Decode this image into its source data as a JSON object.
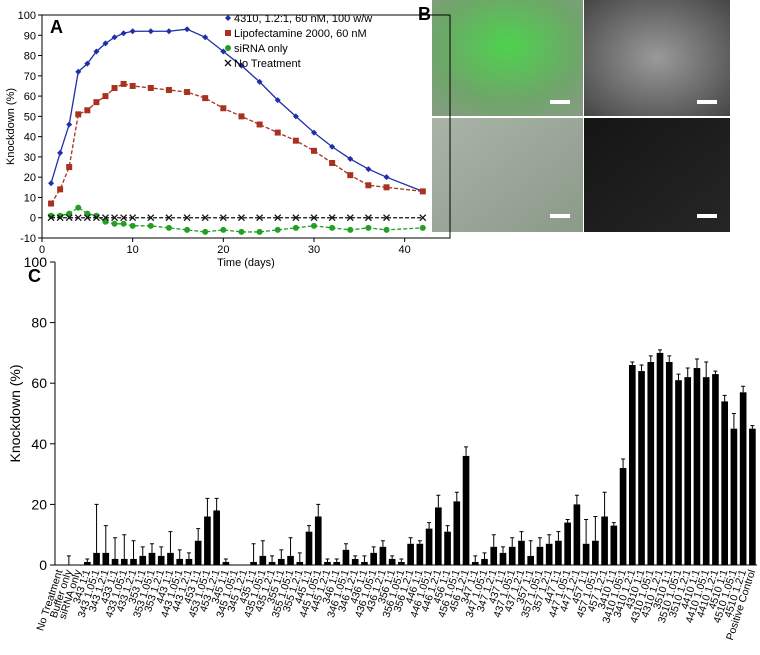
{
  "chart_data": [
    {
      "type": "line",
      "panel_label": "A",
      "x_label": "Time (days)",
      "y_label": "Knockdown (%)",
      "x": [
        1,
        2,
        3,
        4,
        5,
        6,
        7,
        8,
        9,
        10,
        12,
        14,
        16,
        18,
        20,
        22,
        24,
        26,
        28,
        30,
        32,
        34,
        36,
        38,
        42
      ],
      "xlim": [
        0,
        45
      ],
      "xticks": [
        0,
        10,
        20,
        30,
        40
      ],
      "ylim": [
        -10,
        100
      ],
      "yticks": [
        -10,
        0,
        10,
        20,
        30,
        40,
        50,
        60,
        70,
        80,
        90,
        100
      ],
      "series": [
        {
          "name": "4310, 1.2:1, 60 nM, 100 w/w",
          "color": "#1f2fa8",
          "marker": "diamond",
          "dashed": false,
          "values": [
            17,
            32,
            46,
            72,
            76,
            82,
            86,
            89,
            91,
            92,
            92,
            92,
            93,
            89,
            82,
            75,
            67,
            58,
            50,
            42,
            35,
            29,
            24,
            20,
            13
          ]
        },
        {
          "name": "Lipofectamine 2000, 60 nM",
          "color": "#a8321f",
          "marker": "square",
          "dashed": true,
          "values": [
            7,
            14,
            25,
            51,
            53,
            57,
            60,
            64,
            66,
            65,
            64,
            63,
            62,
            59,
            54,
            50,
            46,
            42,
            38,
            33,
            27,
            21,
            16,
            15,
            13
          ]
        },
        {
          "name": "siRNA only",
          "color": "#22a022",
          "marker": "circle",
          "dashed": true,
          "values": [
            1,
            1,
            2,
            5,
            2,
            1,
            -2,
            -3,
            -3,
            -4,
            -4,
            -5,
            -6,
            -7,
            -6,
            -7,
            -7,
            -6,
            -5,
            -4,
            -5,
            -6,
            -5,
            -6,
            -5
          ]
        },
        {
          "name": "No Treatment",
          "color": "#111111",
          "marker": "x",
          "dashed": true,
          "values": [
            0,
            0,
            0,
            0,
            0,
            0,
            0,
            0,
            0,
            0,
            0,
            0,
            0,
            0,
            0,
            0,
            0,
            0,
            0,
            0,
            0,
            0,
            0,
            0,
            0
          ]
        }
      ],
      "legend": "top-right"
    },
    {
      "type": "bar",
      "panel_label": "C",
      "y_label": "Knockdown (%)",
      "color": "#000000",
      "ylim": [
        0,
        100
      ],
      "yticks": [
        0,
        20,
        40,
        60,
        80,
        100
      ],
      "categories": [
        "No Treatment",
        "Buffer only",
        "siRNA only",
        "343 1:1",
        "343 1.05:1",
        "343 1.2:1",
        "433 1:1",
        "433 1.05:1",
        "433 1.2:1",
        "353 1:1",
        "353 1.05:1",
        "353 1.2:1",
        "443 1:1",
        "443 1.05:1",
        "443 1.2:1",
        "453 1:1",
        "453 1.05:1",
        "453 1.2:1",
        "345 1:1",
        "345 1.05:1",
        "345 1.2:1",
        "435 1:1",
        "435 1.05:1",
        "435 1.2:1",
        "355 1:1",
        "355 1.05:1",
        "355 1.2:1",
        "445 1:1",
        "445 1.05:1",
        "445 1.2:1",
        "346 1:1",
        "346 1.05:1",
        "346 1.2:1",
        "436 1:1",
        "436 1.05:1",
        "436 1.2:1",
        "356 1:1",
        "356 1.05:1",
        "356 1.2:1",
        "446 1:1",
        "446 1.05:1",
        "446 1.2:1",
        "456 1:1",
        "456 1.05:1",
        "456 1.2:1",
        "347 1:1",
        "347 1.05:1",
        "347 1.2:1",
        "437 1:1",
        "437 1.05:1",
        "437 1.2:1",
        "357 1:1",
        "357 1.05:1",
        "357 1.2:1",
        "447 1:1",
        "447 1.05:1",
        "447 1.2:1",
        "457 1:1",
        "457 1.05:1",
        "457 1.2:1",
        "3410 1:1",
        "3410 1.05:1",
        "3410 1.2:1",
        "4310 1:1",
        "4310 1.05:1",
        "4310 1.2:1",
        "3510 1:1",
        "3510 1.05:1",
        "3510 1.2:1",
        "4410 1:1",
        "4410 1.05:1",
        "4410 1.2:1",
        "4510 1:1",
        "4510 1.05:1",
        "4510 1.2:1",
        "Positive Control"
      ],
      "values": [
        0,
        0,
        0,
        1,
        4,
        4,
        2,
        2,
        2,
        3,
        4,
        3,
        4,
        2,
        2,
        8,
        16,
        18,
        1,
        0,
        0,
        1,
        3,
        1,
        2,
        3,
        1,
        11,
        16,
        1,
        1,
        5,
        2,
        1,
        4,
        6,
        2,
        1,
        7,
        7,
        12,
        19,
        11,
        21,
        36,
        1,
        2,
        6,
        4,
        6,
        8,
        3,
        6,
        7,
        8,
        14,
        20,
        7,
        8,
        16,
        13,
        32,
        66,
        64,
        67,
        70,
        67,
        61,
        62,
        65,
        62,
        63,
        54,
        45,
        57,
        45
      ],
      "errors": [
        0,
        3,
        0,
        1,
        16,
        9,
        7,
        8,
        6,
        3,
        3,
        3,
        7,
        3,
        2,
        4,
        6,
        4,
        1,
        0,
        0,
        6,
        5,
        2,
        3,
        6,
        3,
        2,
        4,
        1,
        1,
        2,
        1,
        2,
        2,
        2,
        1,
        1,
        2,
        1,
        2,
        4,
        2,
        3,
        3,
        2,
        2,
        4,
        2,
        3,
        3,
        5,
        3,
        3,
        3,
        1,
        3,
        8,
        8,
        8,
        1,
        3,
        1,
        2,
        2,
        1,
        2,
        2,
        3,
        3,
        5,
        1,
        2,
        5,
        2,
        1
      ]
    }
  ],
  "panel_b": {
    "label": "B"
  }
}
